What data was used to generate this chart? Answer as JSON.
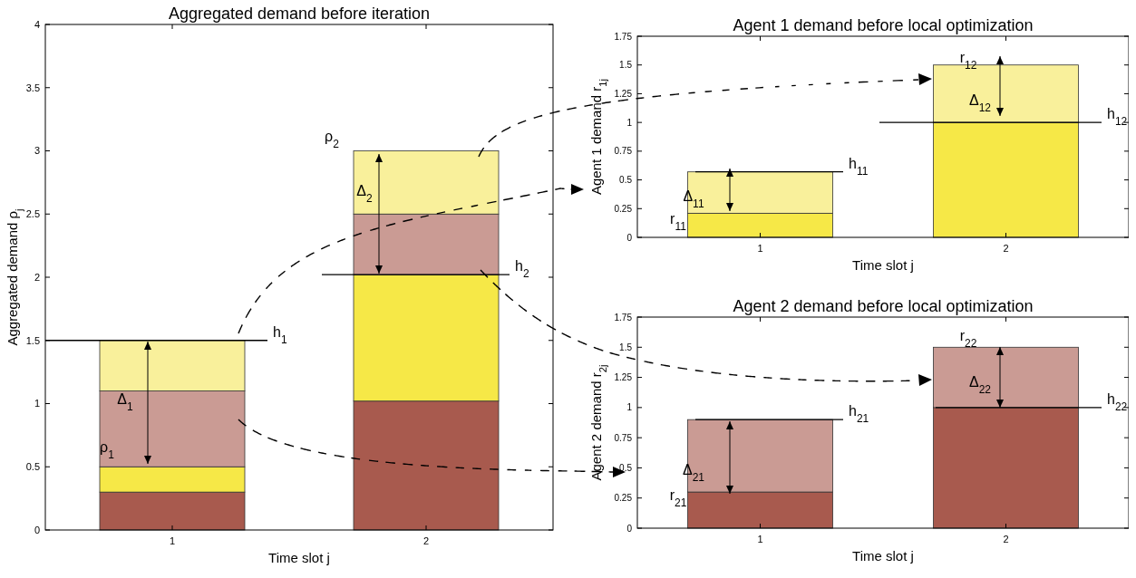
{
  "chart_data": [
    {
      "type": "bar",
      "title": "Aggregated demand before iteration",
      "xlabel": "Time slot j",
      "ylabel": "Aggregated demand  ρ$_{j}$",
      "categories": [
        "1",
        "2"
      ],
      "stacked": true,
      "series": [
        {
          "color": "#a85a4e",
          "values": [
            0.3,
            1.02
          ]
        },
        {
          "color": "#f6e847",
          "values": [
            0.2,
            1.0
          ]
        },
        {
          "color": "#ca9b94",
          "values": [
            0.6,
            0.48
          ]
        },
        {
          "color": "#f9f09b",
          "values": [
            0.4,
            0.5
          ]
        }
      ],
      "ylim": [
        0,
        4
      ],
      "yticks": [
        0,
        0.5,
        1,
        1.5,
        2,
        2.5,
        3,
        3.5,
        4
      ],
      "ref_lines": [
        {
          "axis": "y",
          "value": 1.5,
          "label": "h$_{1}$"
        },
        {
          "axis": "y",
          "value": 2.02,
          "label": "h$_{2}$"
        }
      ],
      "annotations": [
        "Δ$_{1}$",
        "Δ$_{2}$",
        "ρ$_{1}$",
        "ρ$_{2}$"
      ]
    },
    {
      "type": "bar",
      "title": "Agent 1 demand before local optimization",
      "xlabel": "Time slot j",
      "ylabel": "Agent 1 demand r$_{1j}$",
      "categories": [
        "1",
        "2"
      ],
      "stacked": true,
      "series": [
        {
          "color": "#f6e847",
          "values": [
            0.21,
            1.0
          ]
        },
        {
          "color": "#f9f09b",
          "values": [
            0.36,
            0.5
          ]
        }
      ],
      "ylim": [
        0,
        1.75
      ],
      "yticks": [
        0,
        0.25,
        0.5,
        0.75,
        1,
        1.25,
        1.5,
        1.75
      ],
      "ref_lines": [
        {
          "axis": "y",
          "value": 0.57,
          "label": "h$_{11}$"
        },
        {
          "axis": "y",
          "value": 1.0,
          "label": "h$_{12}$"
        }
      ],
      "annotations": [
        "Δ$_{11}$",
        "Δ$_{12}$",
        "r$_{11}$",
        "r$_{12}$"
      ]
    },
    {
      "type": "bar",
      "title": "Agent 2 demand before local optimization",
      "xlabel": "Time slot j",
      "ylabel": "Agent 2 demand r$_{2j}$",
      "categories": [
        "1",
        "2"
      ],
      "stacked": true,
      "series": [
        {
          "color": "#a85a4e",
          "values": [
            0.3,
            1.0
          ]
        },
        {
          "color": "#ca9b94",
          "values": [
            0.6,
            0.5
          ]
        }
      ],
      "ylim": [
        0,
        1.75
      ],
      "yticks": [
        0,
        0.25,
        0.5,
        0.75,
        1,
        1.25,
        1.5,
        1.75
      ],
      "ref_lines": [
        {
          "axis": "y",
          "value": 0.9,
          "label": "h$_{21}$"
        },
        {
          "axis": "y",
          "value": 1.0,
          "label": "h$_{22}$"
        }
      ],
      "annotations": [
        "Δ$_{21}$",
        "Δ$_{22}$",
        "r$_{21}$",
        "r$_{22}$"
      ]
    }
  ]
}
